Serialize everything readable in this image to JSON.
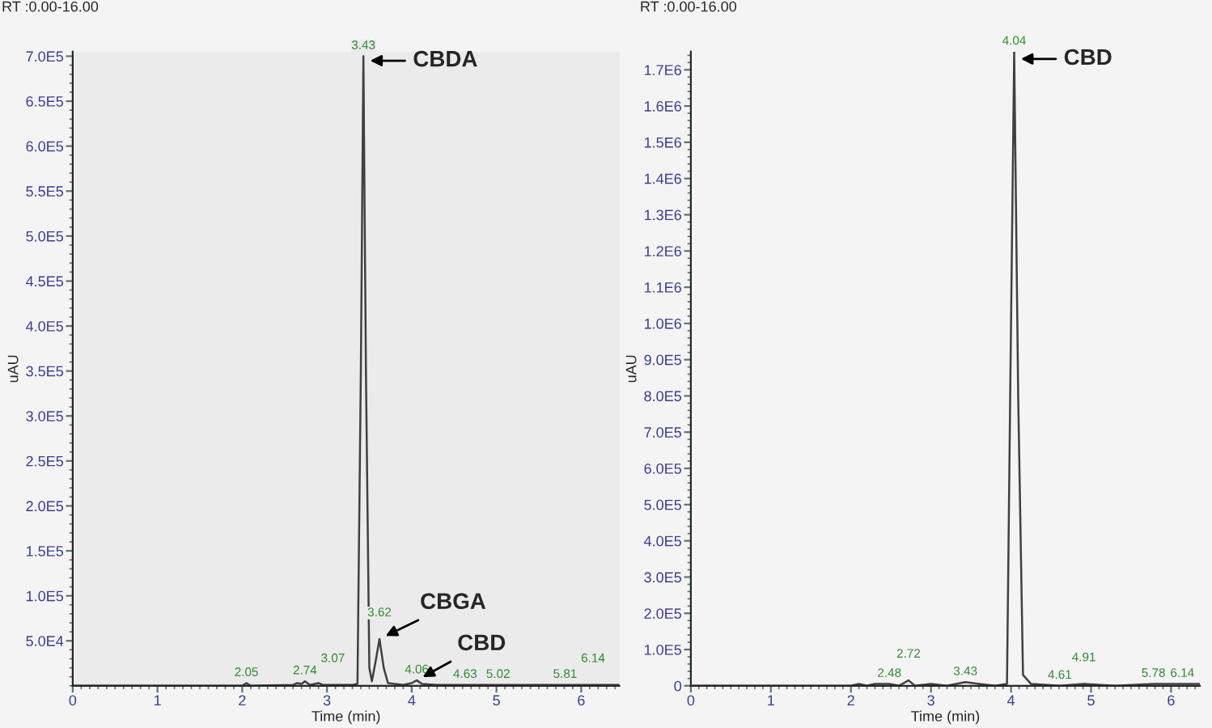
{
  "chart_data": [
    {
      "type": "line",
      "title": "RT :0.00-16.00",
      "xlabel": "Time (min)",
      "ylabel": "uAU",
      "grid": false,
      "legend": false,
      "marker": "none",
      "line_style": "solid",
      "xlim": [
        0,
        6.45
      ],
      "xticks": [
        0,
        1,
        2,
        3,
        4,
        5,
        6
      ],
      "ylim": [
        0,
        705000
      ],
      "yticks": [
        {
          "value": 50000,
          "label": "5.0E4"
        },
        {
          "value": 100000,
          "label": "1.0E5"
        },
        {
          "value": 150000,
          "label": "1.5E5"
        },
        {
          "value": 200000,
          "label": "2.0E5"
        },
        {
          "value": 250000,
          "label": "2.5E5"
        },
        {
          "value": 300000,
          "label": "3.0E5"
        },
        {
          "value": 350000,
          "label": "3.5E5"
        },
        {
          "value": 400000,
          "label": "4.0E5"
        },
        {
          "value": 450000,
          "label": "4.5E5"
        },
        {
          "value": 500000,
          "label": "5.0E5"
        },
        {
          "value": 550000,
          "label": "5.5E5"
        },
        {
          "value": 600000,
          "label": "6.0E5"
        },
        {
          "value": 650000,
          "label": "6.5E5"
        },
        {
          "value": 700000,
          "label": "7.0E5"
        }
      ],
      "series": [
        {
          "color": "#404040",
          "x": [
            0,
            2.0,
            2.05,
            2.1,
            2.6,
            2.65,
            2.7,
            2.74,
            2.8,
            2.9,
            2.95,
            3.07,
            3.3,
            3.36,
            3.4,
            3.43,
            3.46,
            3.5,
            3.53,
            3.57,
            3.62,
            3.67,
            3.72,
            3.9,
            4.0,
            4.06,
            4.12,
            4.3,
            4.63,
            5.02,
            5.81,
            6.14,
            6.45
          ],
          "values": [
            0,
            0,
            3000,
            0,
            1000,
            3000,
            2000,
            5000,
            1000,
            3000,
            1000,
            1000,
            1000,
            2000,
            350000,
            700000,
            350000,
            20000,
            5000,
            25000,
            52000,
            20000,
            3000,
            1000,
            3000,
            6000,
            2000,
            1000,
            1000,
            1000,
            1000,
            1000,
            1000
          ]
        }
      ],
      "annotations": [
        {
          "text": "2.05",
          "x": 2.05,
          "y": 3000
        },
        {
          "text": "2.74",
          "x": 2.74,
          "y": 5000
        },
        {
          "text": "3.07",
          "x": 3.07,
          "y": 1000
        },
        {
          "text": "3.43",
          "x": 3.43,
          "y": 700000
        },
        {
          "text": "3.62",
          "x": 3.62,
          "y": 52000
        },
        {
          "text": "4.06",
          "x": 4.06,
          "y": 6000
        },
        {
          "text": "4.63",
          "x": 4.63,
          "y": 1000
        },
        {
          "text": "5.02",
          "x": 5.02,
          "y": 1000
        },
        {
          "text": "5.81",
          "x": 5.81,
          "y": 1000
        },
        {
          "text": "6.14",
          "x": 6.14,
          "y": 1000
        },
        {
          "text": "CBDA",
          "x": 3.43,
          "y": 695000
        },
        {
          "text": "CBGA",
          "x": 3.62,
          "y": 52000
        },
        {
          "text": "CBD",
          "x": 4.06,
          "y": 6000
        }
      ]
    },
    {
      "type": "line",
      "title": "RT :0.00-16.00",
      "xlabel": "Time (min)",
      "ylabel": "uAU",
      "grid": false,
      "legend": false,
      "marker": "none",
      "line_style": "solid",
      "xlim": [
        0,
        6.36
      ],
      "xticks": [
        0,
        1,
        2,
        3,
        4,
        5,
        6
      ],
      "ylim": [
        0,
        1750000
      ],
      "yticks": [
        0,
        {
          "value": 100000,
          "label": "1.0E5"
        },
        {
          "value": 200000,
          "label": "2.0E5"
        },
        {
          "value": 300000,
          "label": "3.0E5"
        },
        {
          "value": 400000,
          "label": "4.0E5"
        },
        {
          "value": 500000,
          "label": "5.0E5"
        },
        {
          "value": 600000,
          "label": "6.0E5"
        },
        {
          "value": 700000,
          "label": "7.0E5"
        },
        {
          "value": 800000,
          "label": "8.0E5"
        },
        {
          "value": 900000,
          "label": "9.0E5"
        },
        {
          "value": 1000000,
          "label": "1.0E6"
        },
        {
          "value": 1100000,
          "label": "1.1E6"
        },
        {
          "value": 1200000,
          "label": "1.2E6"
        },
        {
          "value": 1300000,
          "label": "1.3E6"
        },
        {
          "value": 1400000,
          "label": "1.4E6"
        },
        {
          "value": 1500000,
          "label": "1.5E6"
        },
        {
          "value": 1600000,
          "label": "1.6E6"
        },
        {
          "value": 1700000,
          "label": "1.7E6"
        }
      ],
      "series": [
        {
          "color": "#404040",
          "x": [
            0,
            2.0,
            2.1,
            2.2,
            2.3,
            2.48,
            2.6,
            2.72,
            2.8,
            3.0,
            3.2,
            3.43,
            3.6,
            3.8,
            3.95,
            3.99,
            4.04,
            4.09,
            4.15,
            4.25,
            4.61,
            4.91,
            5.3,
            5.78,
            6.14,
            6.36
          ],
          "values": [
            0,
            0,
            5000,
            0,
            5000,
            5000,
            0,
            15000,
            0,
            5000,
            0,
            10000,
            5000,
            0,
            5000,
            800000,
            1750000,
            800000,
            30000,
            5000,
            0,
            5000,
            0,
            5000,
            5000,
            5000
          ]
        }
      ],
      "annotations": [
        {
          "text": "2.48",
          "x": 2.48,
          "y": 5000
        },
        {
          "text": "2.72",
          "x": 2.72,
          "y": 15000
        },
        {
          "text": "3.43",
          "x": 3.43,
          "y": 10000
        },
        {
          "text": "4.04",
          "x": 4.04,
          "y": 1750000
        },
        {
          "text": "4.61",
          "x": 4.61,
          "y": 0
        },
        {
          "text": "4.91",
          "x": 4.91,
          "y": 5000
        },
        {
          "text": "5.78",
          "x": 5.78,
          "y": 5000
        },
        {
          "text": "6.14",
          "x": 6.14,
          "y": 5000
        },
        {
          "text": "CBD",
          "x": 4.04,
          "y": 1730000
        }
      ]
    }
  ]
}
